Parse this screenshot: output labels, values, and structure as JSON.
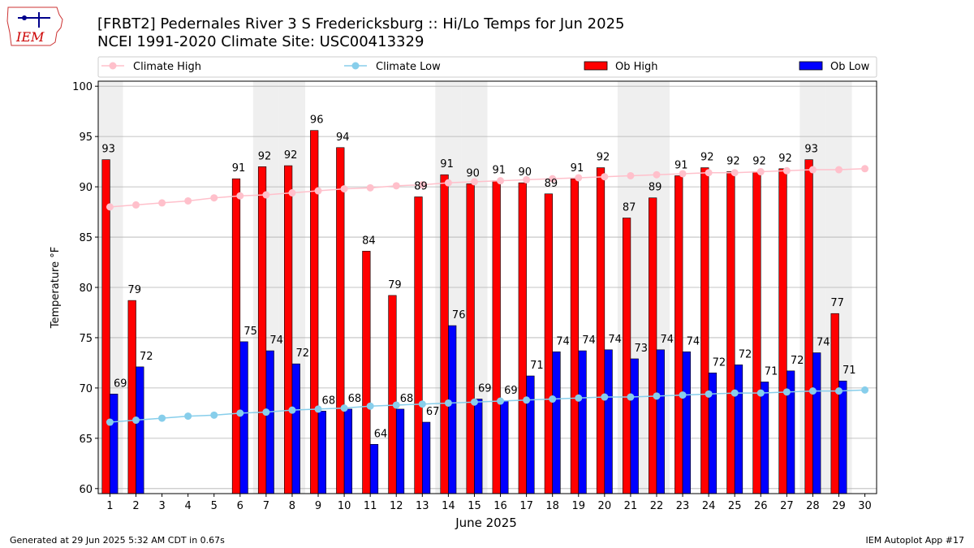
{
  "title_line1": "[FRBT2] Pedernales River 3 S Fredericksburg :: Hi/Lo Temps for Jun 2025",
  "title_line2": "NCEI 1991-2020 Climate Site: USC00413329",
  "logo_text": "IEM",
  "footer_left": "Generated at 29 Jun 2025 5:32 AM CDT in 0.67s",
  "footer_right": "IEM Autoplot App #17",
  "colors": {
    "ob_high": "#ff0000",
    "ob_low": "#0000ff",
    "climate_high": "#ffc0cb",
    "climate_low": "#87ceeb",
    "weekend_band": "#efefef",
    "grid": "#b0b0b0"
  },
  "chart_data": {
    "type": "bar",
    "xlabel": "June 2025",
    "ylabel": "Temperature °F",
    "ylim": [
      59.5,
      100.5
    ],
    "yticks": [
      60,
      65,
      70,
      75,
      80,
      85,
      90,
      95,
      100
    ],
    "grid": "horizontal",
    "legend_placement": "top",
    "x": [
      1,
      2,
      3,
      4,
      5,
      6,
      7,
      8,
      9,
      10,
      11,
      12,
      13,
      14,
      15,
      16,
      17,
      18,
      19,
      20,
      21,
      22,
      23,
      24,
      25,
      26,
      27,
      28,
      29,
      30
    ],
    "weekend_days": [
      1,
      7,
      8,
      14,
      15,
      21,
      22,
      28,
      29
    ],
    "series": [
      {
        "name": "Climate High",
        "type": "line",
        "values": [
          88.0,
          88.2,
          88.4,
          88.6,
          88.9,
          89.1,
          89.2,
          89.4,
          89.6,
          89.8,
          89.9,
          90.1,
          90.2,
          90.4,
          90.5,
          90.6,
          90.7,
          90.8,
          90.9,
          91.0,
          91.1,
          91.2,
          91.3,
          91.4,
          91.4,
          91.5,
          91.6,
          91.7,
          91.7,
          91.8
        ]
      },
      {
        "name": "Climate Low",
        "type": "line",
        "values": [
          66.6,
          66.8,
          67.0,
          67.2,
          67.3,
          67.5,
          67.6,
          67.8,
          67.9,
          68.0,
          68.2,
          68.3,
          68.4,
          68.5,
          68.6,
          68.7,
          68.8,
          68.9,
          69.0,
          69.1,
          69.1,
          69.2,
          69.3,
          69.4,
          69.5,
          69.5,
          69.6,
          69.7,
          69.7,
          69.8
        ]
      },
      {
        "name": "Ob High",
        "type": "bar",
        "values": [
          92.7,
          78.7,
          null,
          null,
          null,
          90.8,
          92.0,
          92.1,
          95.6,
          93.9,
          83.6,
          79.2,
          89.0,
          91.2,
          90.3,
          90.6,
          90.4,
          89.3,
          90.8,
          91.9,
          86.9,
          88.9,
          91.1,
          91.9,
          91.5,
          91.5,
          91.8,
          92.7,
          77.4,
          null
        ],
        "labels": [
          "93",
          "79",
          "",
          "",
          "",
          "91",
          "92",
          "92",
          "96",
          "94",
          "84",
          "79",
          "89",
          "91",
          "90",
          "91",
          "90",
          "89",
          "91",
          "92",
          "87",
          "89",
          "91",
          "92",
          "92",
          "92",
          "92",
          "93",
          "77",
          ""
        ]
      },
      {
        "name": "Ob Low",
        "type": "bar",
        "values": [
          69.4,
          72.1,
          null,
          null,
          null,
          74.6,
          73.7,
          72.4,
          67.7,
          67.9,
          64.4,
          67.9,
          66.6,
          76.2,
          68.9,
          68.7,
          71.2,
          73.6,
          73.7,
          73.8,
          72.9,
          73.8,
          73.6,
          71.5,
          72.3,
          70.6,
          71.7,
          73.5,
          70.7,
          null
        ],
        "labels": [
          "69",
          "72",
          "",
          "",
          "",
          "75",
          "74",
          "72",
          "68",
          "68",
          "64",
          "68",
          "67",
          "76",
          "69",
          "69",
          "71",
          "74",
          "74",
          "74",
          "73",
          "74",
          "74",
          "72",
          "72",
          "71",
          "72",
          "74",
          "71",
          ""
        ]
      }
    ]
  }
}
